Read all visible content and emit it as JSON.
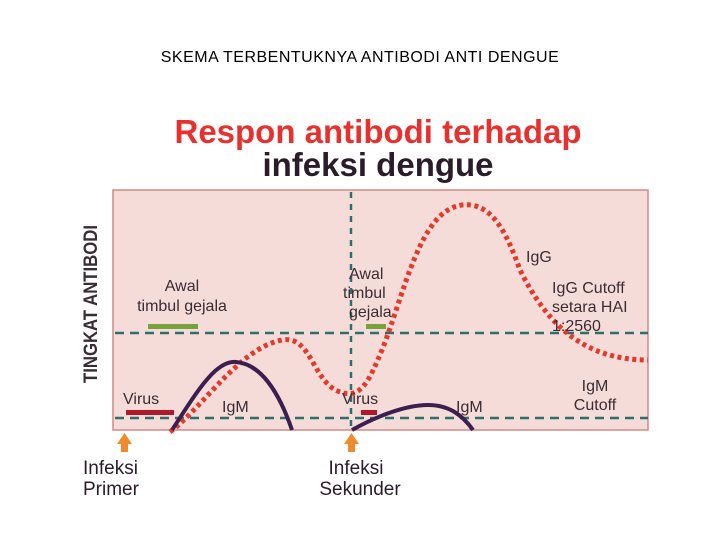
{
  "slide_title": "SKEMA TERBENTUKNYA ANTIBODI ANTI  DENGUE",
  "figure": {
    "title_line1": "Respon antibodi terhadap",
    "title_line2": "infeksi dengue",
    "y_axis_label": "TINGKAT ANTIBODI",
    "labels": {
      "awal1_line1": "Awal",
      "awal1_line2": "timbul gejala",
      "awal2_line1": "Awal",
      "awal2_line2": "timbul",
      "awal2_line3": "gejala",
      "virus1": "Virus",
      "virus2": "Virus",
      "igm1": "IgM",
      "igm2": "IgM",
      "igg": "IgG",
      "igg_cutoff_line1": "IgG Cutoff",
      "igg_cutoff_line2": "setara HAI",
      "igg_cutoff_line3": "1:2560",
      "igm_cutoff_line1": "IgM",
      "igm_cutoff_line2": "Cutoff",
      "infeksi_primer_line1": "Infeksi",
      "infeksi_primer_line2": "Primer",
      "infeksi_sekunder_line1": "Infeksi",
      "infeksi_sekunder_line2": "Sekunder"
    },
    "colors": {
      "title_red": "#e8312e",
      "title_dark": "#2b1c2a",
      "panel_bg": "#f5dcd9",
      "panel_border": "#d08a86",
      "dashed_teal": "#2f6f6b",
      "igg_red": "#e23a2b",
      "igm_purple": "#3c1f4f",
      "virus_red": "#b0192a",
      "symptom_green": "#7aa23c",
      "arrow_orange": "#f08a2a",
      "text_dark": "#3a2c33"
    }
  }
}
